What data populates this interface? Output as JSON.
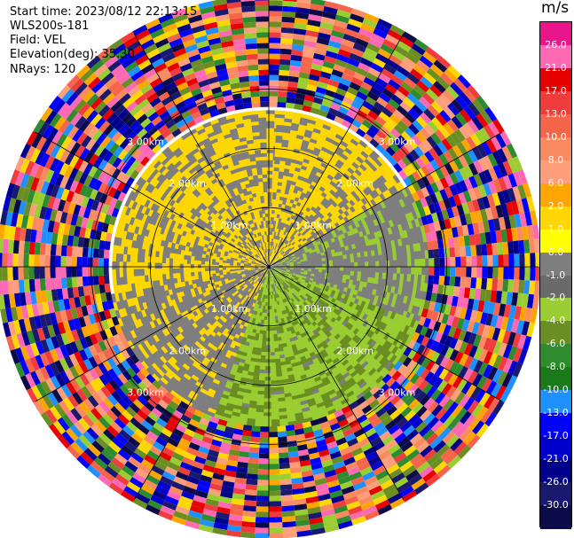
{
  "header": {
    "start_time": "Start time: 2023/08/12 22:13:15",
    "instrument": "WLS200s-181",
    "field": "Field: VEL",
    "elevation": "Elevation(deg): 35.30",
    "nrays": "NRays: 120"
  },
  "colorbar": {
    "unit": "m/s",
    "ticks": [
      "26.0",
      "21.0",
      "17.0",
      "13.0",
      "10.0",
      "8.0",
      "6.0",
      "2.0",
      "1.0",
      "0.0",
      "-1.0",
      "-2.0",
      "-4.0",
      "-6.0",
      "-8.0",
      "-10.0",
      "-13.0",
      "-17.0",
      "-21.0",
      "-26.0",
      "-30.0"
    ],
    "colors": [
      "#e8168a",
      "#ff69b4",
      "#e60000",
      "#f03c3c",
      "#f5654a",
      "#fa8a60",
      "#ff9e7a",
      "#ffa500",
      "#ffd700",
      "#ffff00",
      "#7e7e7e",
      "#6a6a6a",
      "#9acd32",
      "#6b8e23",
      "#2e8b2e",
      "#1a7a1a",
      "#1e90ff",
      "#0000ff",
      "#0000cd",
      "#00008b",
      "#191970",
      "#0b0b4a"
    ]
  },
  "chart_data": {
    "type": "polar_ppi",
    "field": "VEL",
    "unit": "m/s",
    "nrays": 120,
    "elevation_deg": 35.3,
    "vmin": -30.0,
    "vmax": 26.0,
    "range_rings_km": [
      1.0,
      2.0,
      3.0
    ],
    "ring_labels": [
      "1.00km",
      "2.00km",
      "3.00km"
    ],
    "max_range_km": 4.55,
    "azimuth_spokes_deg": [
      0,
      30,
      60,
      90,
      120,
      150,
      180,
      210,
      240,
      270,
      300,
      330
    ],
    "velocity_sectors": [
      {
        "az_from": 0,
        "az_to": 60,
        "r_to_km": 2.6,
        "velocity": 2.0
      },
      {
        "az_from": 60,
        "az_to": 110,
        "r_to_km": 2.7,
        "velocity": 0.0
      },
      {
        "az_from": 110,
        "az_to": 200,
        "r_to_km": 2.9,
        "velocity": -2.0
      },
      {
        "az_from": 200,
        "az_to": 260,
        "r_to_km": 2.7,
        "velocity": 0.0
      },
      {
        "az_from": 260,
        "az_to": 360,
        "r_to_km": 2.6,
        "velocity": 2.0
      }
    ],
    "outer_noise_from_km": 2.7
  }
}
